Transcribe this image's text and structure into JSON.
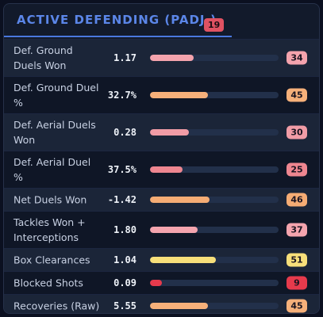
{
  "header": {
    "title": "ACTIVE DEFENDING (PADJ.)",
    "count": "19"
  },
  "rows": [
    {
      "label": "Def. Ground Duels Won",
      "value": "1.17",
      "percentile": 34,
      "color": "#f4a3ad",
      "tall": true
    },
    {
      "label": "Def. Ground Duel %",
      "value": "32.7%",
      "percentile": 45,
      "color": "#f6b07a",
      "tall": true
    },
    {
      "label": "Def. Aerial Duels Won",
      "value": "0.28",
      "percentile": 30,
      "color": "#f19ca6",
      "tall": true
    },
    {
      "label": "Def. Aerial Duel %",
      "value": "37.5%",
      "percentile": 25,
      "color": "#ee8690",
      "tall": true
    },
    {
      "label": "Net Duels Won",
      "value": "-1.42",
      "percentile": 46,
      "color": "#f5ac74",
      "tall": false
    },
    {
      "label": "Tackles Won + Interceptions",
      "value": "1.80",
      "percentile": 37,
      "color": "#f4a4ae",
      "tall": true
    },
    {
      "label": "Box Clearances",
      "value": "1.04",
      "percentile": 51,
      "color": "#f7df7a",
      "tall": false
    },
    {
      "label": "Blocked Shots",
      "value": "0.09",
      "percentile": 9,
      "color": "#e63a4c",
      "tall": false
    },
    {
      "label": "Recoveries (Raw)",
      "value": "5.55",
      "percentile": 45,
      "color": "#f6b07a",
      "tall": false
    }
  ]
}
